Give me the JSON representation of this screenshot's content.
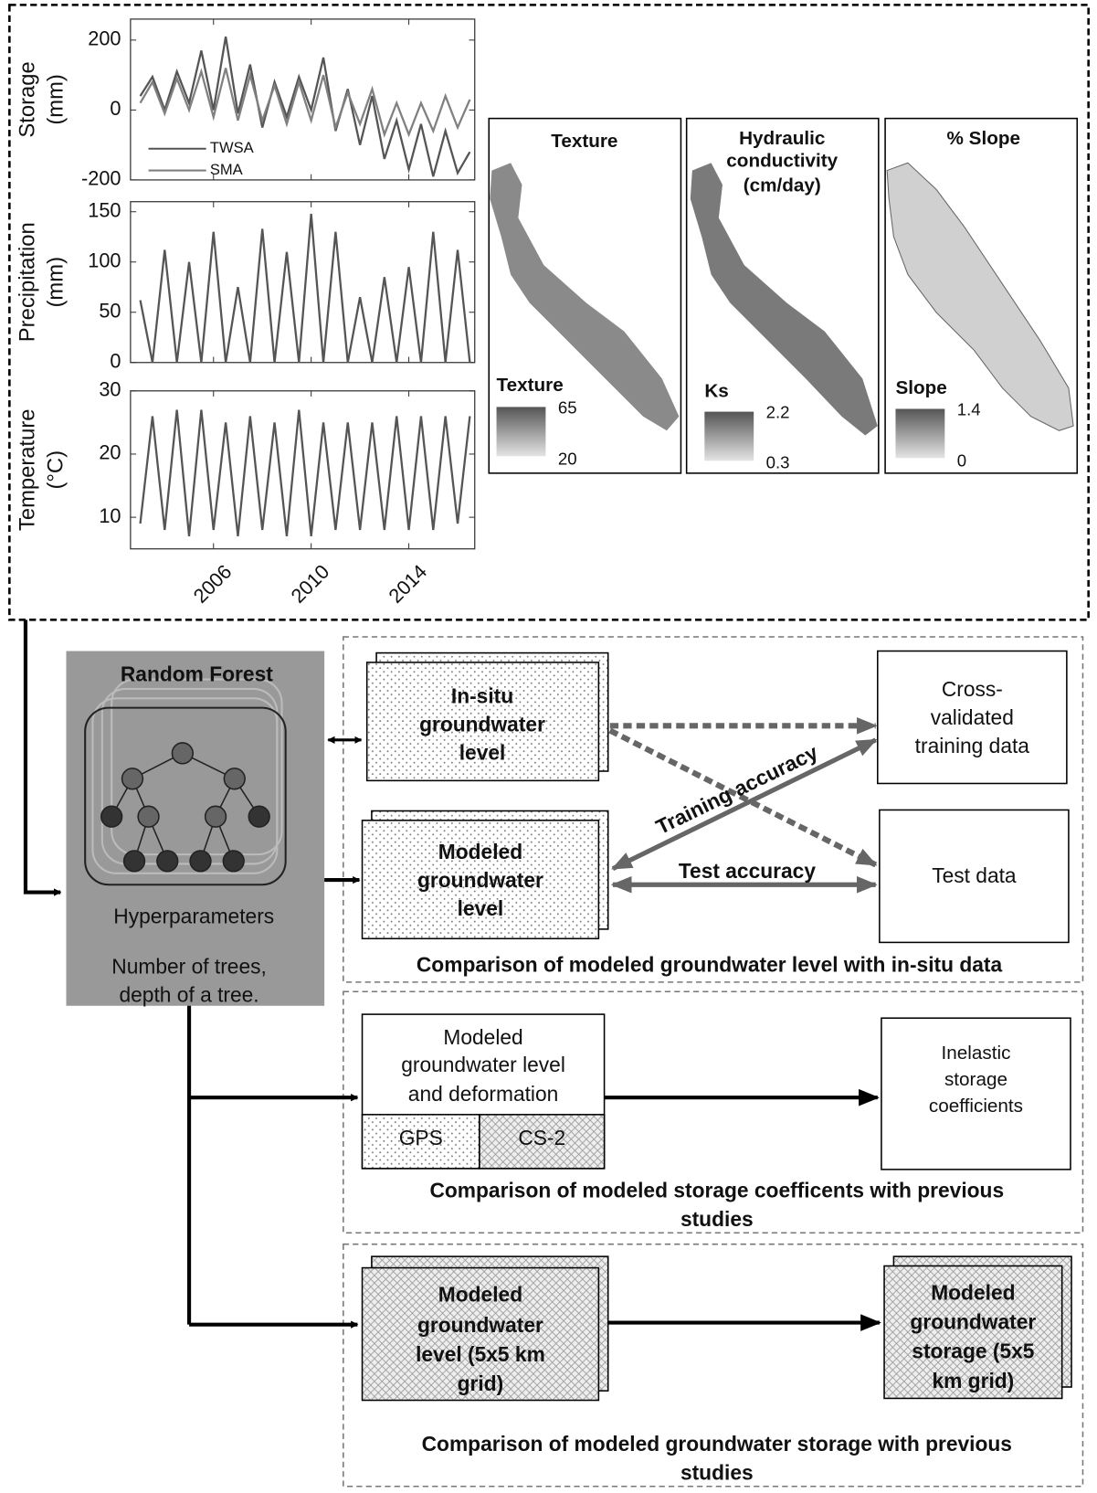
{
  "chart_data": [
    {
      "type": "line",
      "y_label": [
        "Storage",
        "(mm)"
      ],
      "xlim": [
        2002.6,
        2016.7
      ],
      "xticks": [
        2006,
        2010,
        2014
      ],
      "ylim": [
        -200,
        260
      ],
      "yticks": [
        -200,
        0,
        200
      ],
      "x": [
        2003.0,
        2003.5,
        2004.0,
        2004.5,
        2005.0,
        2005.5,
        2006.0,
        2006.5,
        2007.0,
        2007.5,
        2008.0,
        2008.5,
        2009.0,
        2009.5,
        2010.0,
        2010.5,
        2011.0,
        2011.5,
        2012.0,
        2012.5,
        2013.0,
        2013.5,
        2014.0,
        2014.5,
        2015.0,
        2015.5,
        2016.0,
        2016.5
      ],
      "series": [
        {
          "name": "TWSA",
          "color": "#555555",
          "values": [
            40,
            95,
            0,
            110,
            20,
            170,
            0,
            210,
            -10,
            130,
            -50,
            80,
            -20,
            95,
            0,
            150,
            -60,
            60,
            -100,
            40,
            -140,
            -30,
            -170,
            -40,
            -190,
            -60,
            -180,
            -120
          ]
        },
        {
          "name": "SMA",
          "color": "#808080",
          "values": [
            20,
            80,
            -10,
            90,
            0,
            110,
            -20,
            120,
            -30,
            100,
            -30,
            70,
            -40,
            80,
            -30,
            100,
            -50,
            50,
            -40,
            60,
            -70,
            20,
            -70,
            20,
            -60,
            40,
            -50,
            30
          ]
        }
      ]
    },
    {
      "type": "line",
      "y_label": [
        "Precipitation",
        "(mm)"
      ],
      "xlim": [
        2002.6,
        2016.7
      ],
      "xticks": [
        2006,
        2010,
        2014
      ],
      "ylim": [
        0,
        160
      ],
      "yticks": [
        0,
        50,
        100,
        150
      ],
      "x": [
        2003.0,
        2003.5,
        2004.0,
        2004.5,
        2005.0,
        2005.5,
        2006.0,
        2006.5,
        2007.0,
        2007.5,
        2008.0,
        2008.5,
        2009.0,
        2009.5,
        2010.0,
        2010.5,
        2011.0,
        2011.5,
        2012.0,
        2012.5,
        2013.0,
        2013.5,
        2014.0,
        2014.5,
        2015.0,
        2015.5,
        2016.0,
        2016.5
      ],
      "values": [
        62,
        0,
        112,
        0,
        100,
        0,
        130,
        0,
        75,
        0,
        133,
        0,
        110,
        0,
        148,
        0,
        130,
        0,
        65,
        0,
        85,
        0,
        95,
        0,
        130,
        0,
        112,
        0
      ],
      "color": "#555555"
    },
    {
      "type": "line",
      "y_label": [
        "Temperature",
        "(°C)"
      ],
      "xlim": [
        2002.6,
        2016.7
      ],
      "xticks": [
        2006,
        2010,
        2014
      ],
      "ylim": [
        5,
        30
      ],
      "yticks": [
        10,
        20,
        30
      ],
      "x": [
        2003.0,
        2003.5,
        2004.0,
        2004.5,
        2005.0,
        2005.5,
        2006.0,
        2006.5,
        2007.0,
        2007.5,
        2008.0,
        2008.5,
        2009.0,
        2009.5,
        2010.0,
        2010.5,
        2011.0,
        2011.5,
        2012.0,
        2012.5,
        2013.0,
        2013.5,
        2014.0,
        2014.5,
        2015.0,
        2015.5,
        2016.0,
        2016.5
      ],
      "values": [
        9,
        26,
        8,
        27,
        7,
        27,
        8,
        25,
        7,
        26,
        8,
        25,
        7,
        27,
        7,
        25,
        8,
        25,
        8,
        25,
        8,
        26,
        8,
        26,
        8,
        26,
        9,
        26
      ],
      "color": "#555555"
    }
  ],
  "maps": [
    {
      "title": [
        "Texture"
      ],
      "legend_title": "Texture",
      "legend_max": 65,
      "legend_min": 20
    },
    {
      "title": [
        "Hydraulic",
        "conductivity",
        "(cm/day)"
      ],
      "legend_title": "Ks",
      "legend_max": 2.2,
      "legend_min": 0.3
    },
    {
      "title": [
        "% Slope"
      ],
      "legend_title": "Slope",
      "legend_max": 1.4,
      "legend_min": 0
    }
  ],
  "flow": {
    "random_forest": {
      "title": "Random Forest",
      "label": "Hyperparameters",
      "note": [
        "Number of trees,",
        "depth of a tree."
      ]
    },
    "in_situ": [
      "In-situ",
      "groundwater",
      "level"
    ],
    "modeled_level": [
      "Modeled",
      "groundwater",
      "level"
    ],
    "cross_validated": [
      "Cross-",
      "validated",
      "training data"
    ],
    "test_data": "Test data",
    "training_accuracy": "Training accuracy",
    "test_accuracy": "Test accuracy",
    "caption_1": "Comparison of modeled groundwater level with in-situ data",
    "deformation": [
      "Modeled",
      "groundwater level",
      "and deformation"
    ],
    "gps": "GPS",
    "cs2": "CS-2",
    "storage_coefficients": [
      "Inelastic",
      "storage",
      "coefficients"
    ],
    "caption_2": [
      "Comparison of modeled storage coefficents with previous",
      "studies"
    ],
    "grid_level": [
      "Modeled",
      "groundwater",
      "level (5x5 km",
      "grid)"
    ],
    "grid_storage": [
      "Modeled",
      "groundwater",
      "storage (5x5",
      "km grid)"
    ],
    "caption_3": [
      "Comparison of modeled groundwater storage with previous",
      "studies"
    ]
  }
}
